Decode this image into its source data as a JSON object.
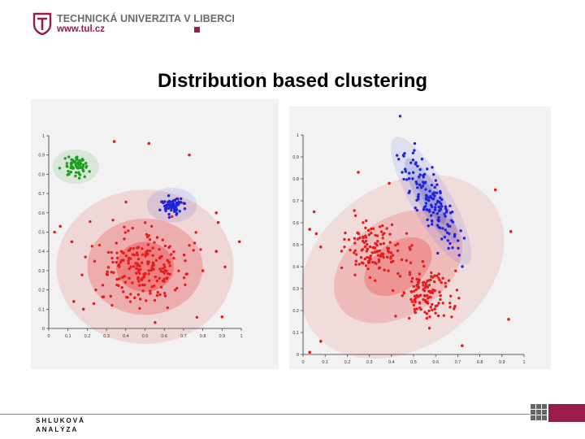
{
  "header": {
    "university": "TECHNICKÁ UNIVERZITA V LIBERCI",
    "website": "www.tul.cz",
    "brand_color": "#9a1c4a"
  },
  "slide": {
    "title": "Distribution based clustering"
  },
  "footer": {
    "line1": "SHLUKOVÁ",
    "line2": "ANALÝZA"
  },
  "chart_data": [
    {
      "type": "scatter",
      "title": "",
      "xlabel": "",
      "ylabel": "",
      "xlim": [
        0,
        1
      ],
      "ylim": [
        0,
        1
      ],
      "x_ticks": [
        "0",
        "0.1",
        "0.2",
        "0.3",
        "0.4",
        "0.5",
        "0.6",
        "0.7",
        "0.8",
        "0.9",
        "1"
      ],
      "y_ticks": [
        "0",
        "0.1",
        "0.2",
        "0.3",
        "0.4",
        "0.5",
        "0.6",
        "0.7",
        "0.8",
        "0.9",
        "1"
      ],
      "grid": false,
      "background_color": "#f2f2f2",
      "clusters": [
        {
          "color": "#1f9e1f",
          "center": [
            0.14,
            0.84
          ],
          "spread": [
            0.03,
            0.025
          ],
          "count": 70
        },
        {
          "color": "#1f24d8",
          "center": [
            0.64,
            0.64
          ],
          "spread": [
            0.03,
            0.022
          ],
          "count": 70
        },
        {
          "color": "#e81c1c",
          "center": [
            0.5,
            0.31
          ],
          "spread": [
            0.12,
            0.1
          ],
          "count": 210
        }
      ],
      "outliers": [
        {
          "x": 0.34,
          "y": 0.97,
          "color": "#e81c1c"
        },
        {
          "x": 0.52,
          "y": 0.96,
          "color": "#e81c1c"
        },
        {
          "x": 0.73,
          "y": 0.9,
          "color": "#e81c1c"
        },
        {
          "x": 0.03,
          "y": 0.5,
          "color": "#e81c1c"
        },
        {
          "x": 0.06,
          "y": 0.53,
          "color": "#e81c1c"
        },
        {
          "x": 0.99,
          "y": 0.45,
          "color": "#e81c1c"
        },
        {
          "x": 0.87,
          "y": 0.6,
          "color": "#e81c1c"
        },
        {
          "x": 0.88,
          "y": 0.55,
          "color": "#e81c1c"
        },
        {
          "x": 0.12,
          "y": 0.45,
          "color": "#e81c1c"
        },
        {
          "x": 0.87,
          "y": 0.4,
          "color": "#e81c1c"
        },
        {
          "x": 0.9,
          "y": 0.06,
          "color": "#e81c1c"
        },
        {
          "x": 0.13,
          "y": 0.14,
          "color": "#e81c1c"
        },
        {
          "x": 0.18,
          "y": 0.1,
          "color": "#e81c1c"
        },
        {
          "x": 0.8,
          "y": 0.3,
          "color": "#e81c1c"
        }
      ],
      "gaussian_ellipses": [
        {
          "color": "#1f9e1f",
          "center": [
            0.14,
            0.84
          ],
          "radii": [
            0.12,
            0.09
          ],
          "angle": 0,
          "opacity": 0.12
        },
        {
          "color": "#2a3dd8",
          "center": [
            0.64,
            0.64
          ],
          "radii": [
            0.13,
            0.09
          ],
          "angle": 0,
          "opacity": 0.12
        },
        {
          "color": "#e81c1c",
          "center": [
            0.5,
            0.32
          ],
          "radii": [
            0.46,
            0.4
          ],
          "angle": 0,
          "opacity": 0.12
        },
        {
          "color": "#e81c1c",
          "center": [
            0.5,
            0.32
          ],
          "radii": [
            0.3,
            0.25
          ],
          "angle": 0,
          "opacity": 0.22
        },
        {
          "color": "#e81c1c",
          "center": [
            0.5,
            0.32
          ],
          "radii": [
            0.15,
            0.13
          ],
          "angle": 0,
          "opacity": 0.3
        }
      ]
    },
    {
      "type": "scatter",
      "title": "",
      "xlabel": "",
      "ylabel": "",
      "xlim": [
        0,
        1
      ],
      "ylim": [
        0,
        1
      ],
      "x_ticks": [
        "0",
        "0.1",
        "0.2",
        "0.3",
        "0.4",
        "0.5",
        "0.6",
        "0.7",
        "0.8",
        "0.9",
        "1"
      ],
      "y_ticks": [
        "0",
        "0.1",
        "0.2",
        "0.3",
        "0.4",
        "0.5",
        "0.6",
        "0.7",
        "0.8",
        "0.9",
        "1"
      ],
      "grid": false,
      "background_color": "#f2f2f2",
      "clusters": [
        {
          "color": "#1f24d8",
          "center": [
            0.57,
            0.71
          ],
          "spread": [
            0.07,
            0.12
          ],
          "corr": -0.85,
          "count": 150
        },
        {
          "color": "#e81c1c",
          "center": [
            0.31,
            0.48
          ],
          "spread": [
            0.06,
            0.06
          ],
          "count": 130
        },
        {
          "color": "#e81c1c",
          "center": [
            0.56,
            0.27
          ],
          "spread": [
            0.06,
            0.06
          ],
          "count": 130
        }
      ],
      "outliers": [
        {
          "x": 0.08,
          "y": 0.06,
          "color": "#e81c1c"
        },
        {
          "x": 0.03,
          "y": 0.01,
          "color": "#e81c1c"
        },
        {
          "x": 0.05,
          "y": 0.65,
          "color": "#e81c1c"
        },
        {
          "x": 0.03,
          "y": 0.57,
          "color": "#e81c1c"
        },
        {
          "x": 0.08,
          "y": 0.49,
          "color": "#e81c1c"
        },
        {
          "x": 0.25,
          "y": 0.83,
          "color": "#e81c1c"
        },
        {
          "x": 0.39,
          "y": 0.78,
          "color": "#e81c1c"
        },
        {
          "x": 0.87,
          "y": 0.75,
          "color": "#e81c1c"
        },
        {
          "x": 0.94,
          "y": 0.56,
          "color": "#e81c1c"
        },
        {
          "x": 0.93,
          "y": 0.16,
          "color": "#e81c1c"
        },
        {
          "x": 0.72,
          "y": 0.04,
          "color": "#e81c1c"
        },
        {
          "x": 0.06,
          "y": 0.55,
          "color": "#e81c1c"
        }
      ],
      "gaussian_ellipses": [
        {
          "color": "#e81c1c",
          "center": [
            0.45,
            0.4
          ],
          "radii": [
            0.5,
            0.37
          ],
          "angle": -35,
          "opacity": 0.1
        },
        {
          "color": "#e81c1c",
          "center": [
            0.43,
            0.4
          ],
          "radii": [
            0.32,
            0.22
          ],
          "angle": -35,
          "opacity": 0.17
        },
        {
          "color": "#e81c1c",
          "center": [
            0.43,
            0.4
          ],
          "radii": [
            0.17,
            0.11
          ],
          "angle": -35,
          "opacity": 0.25
        },
        {
          "color": "#2a3dd8",
          "center": [
            0.58,
            0.7
          ],
          "radii": [
            0.33,
            0.09
          ],
          "angle": 60,
          "opacity": 0.1
        },
        {
          "color": "#2a3dd8",
          "center": [
            0.58,
            0.7
          ],
          "radii": [
            0.22,
            0.055
          ],
          "angle": 60,
          "opacity": 0.17
        },
        {
          "color": "#2a3dd8",
          "center": [
            0.58,
            0.7
          ],
          "radii": [
            0.12,
            0.03
          ],
          "angle": 60,
          "opacity": 0.22
        }
      ]
    }
  ]
}
